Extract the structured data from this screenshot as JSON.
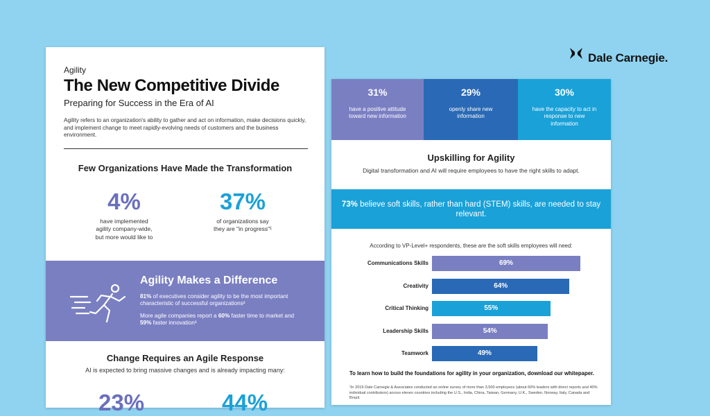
{
  "brand": {
    "name": "Dale Carnegie.",
    "icon": "bowtie-logo-icon"
  },
  "left_page": {
    "kicker": "Agility",
    "title": "The New Competitive Divide",
    "subtitle": "Preparing for Success in the Era of AI",
    "intro": "Agility refers to an organization's ability to gather and act on information, make decisions quickly, and implement change to meet rapidly-evolving needs of customers and the business environment.",
    "few_heading": "Few Organizations Have Made the Transformation",
    "stats": [
      {
        "value": "4%",
        "caption_1": "have implemented",
        "caption_2": "agility company-wide,",
        "caption_3": "but more would like to",
        "color": "#6a6fbd"
      },
      {
        "value": "37%",
        "caption_1": "of organizations say",
        "caption_2": "they are \"in progress\"¹",
        "color": "#1aa1d8"
      }
    ],
    "band": {
      "title": "Agility Makes a Difference",
      "p1_bold": "81%",
      "p1_rest": " of executives consider agility to be the most important characteristic of successful organizations²",
      "p2_a": "More agile companies report a ",
      "p2_b1": "60%",
      "p2_c": " faster time to market and ",
      "p2_b2": "59%",
      "p2_d": " faster innovation³",
      "color": "#7a7fc2"
    },
    "change_heading": "Change Requires an Agile Response",
    "change_text": "AI is expected to bring massive changes and is already impacting many:",
    "peek_values": [
      "23%",
      "44%"
    ]
  },
  "right_page": {
    "tiles": [
      {
        "value": "31%",
        "caption": "have a positive attitude toward new information",
        "color": "#7a7fc2"
      },
      {
        "value": "29%",
        "caption": "openly share new information",
        "color": "#2a69b5"
      },
      {
        "value": "30%",
        "caption": "have the capacity to act in response to new information",
        "color": "#1aa1d8"
      }
    ],
    "upskill_title": "Upskilling for Agility",
    "upskill_sub": "Digital transformation and AI will require employees to have the right skills to adapt.",
    "soft_band": {
      "bold": "73%",
      "rest": " believe soft skills, rather than hard (STEM) skills, are needed to stay relevant."
    },
    "vp_line": "According to VP-Level+ respondents, these are the soft skills employees will need:",
    "cta": "To learn how to build the foundations for agility in your organization, download our whitepaper.",
    "footnote": "¹In 2019 Dale Carnegie & Associates conducted an online survey of more than 3,500 employees (about 60% leaders with direct reports and 40% individual contributors) across eleven countries including the U.S., India, China, Taiwan, Germany, U.K., Sweden, Norway, Italy, Canada and Brazil."
  },
  "chart_data": {
    "type": "bar",
    "orientation": "horizontal",
    "categories": [
      "Communications Skills",
      "Creativity",
      "Critical Thinking",
      "Leadership Skills",
      "Teamwork"
    ],
    "values": [
      69,
      64,
      55,
      54,
      49
    ],
    "labels": [
      "69%",
      "64%",
      "55%",
      "54%",
      "49%"
    ],
    "colors": [
      "#7a7fc2",
      "#2a69b5",
      "#1aa1d8",
      "#7a7fc2",
      "#2a69b5"
    ],
    "xlim": [
      0,
      100
    ]
  }
}
